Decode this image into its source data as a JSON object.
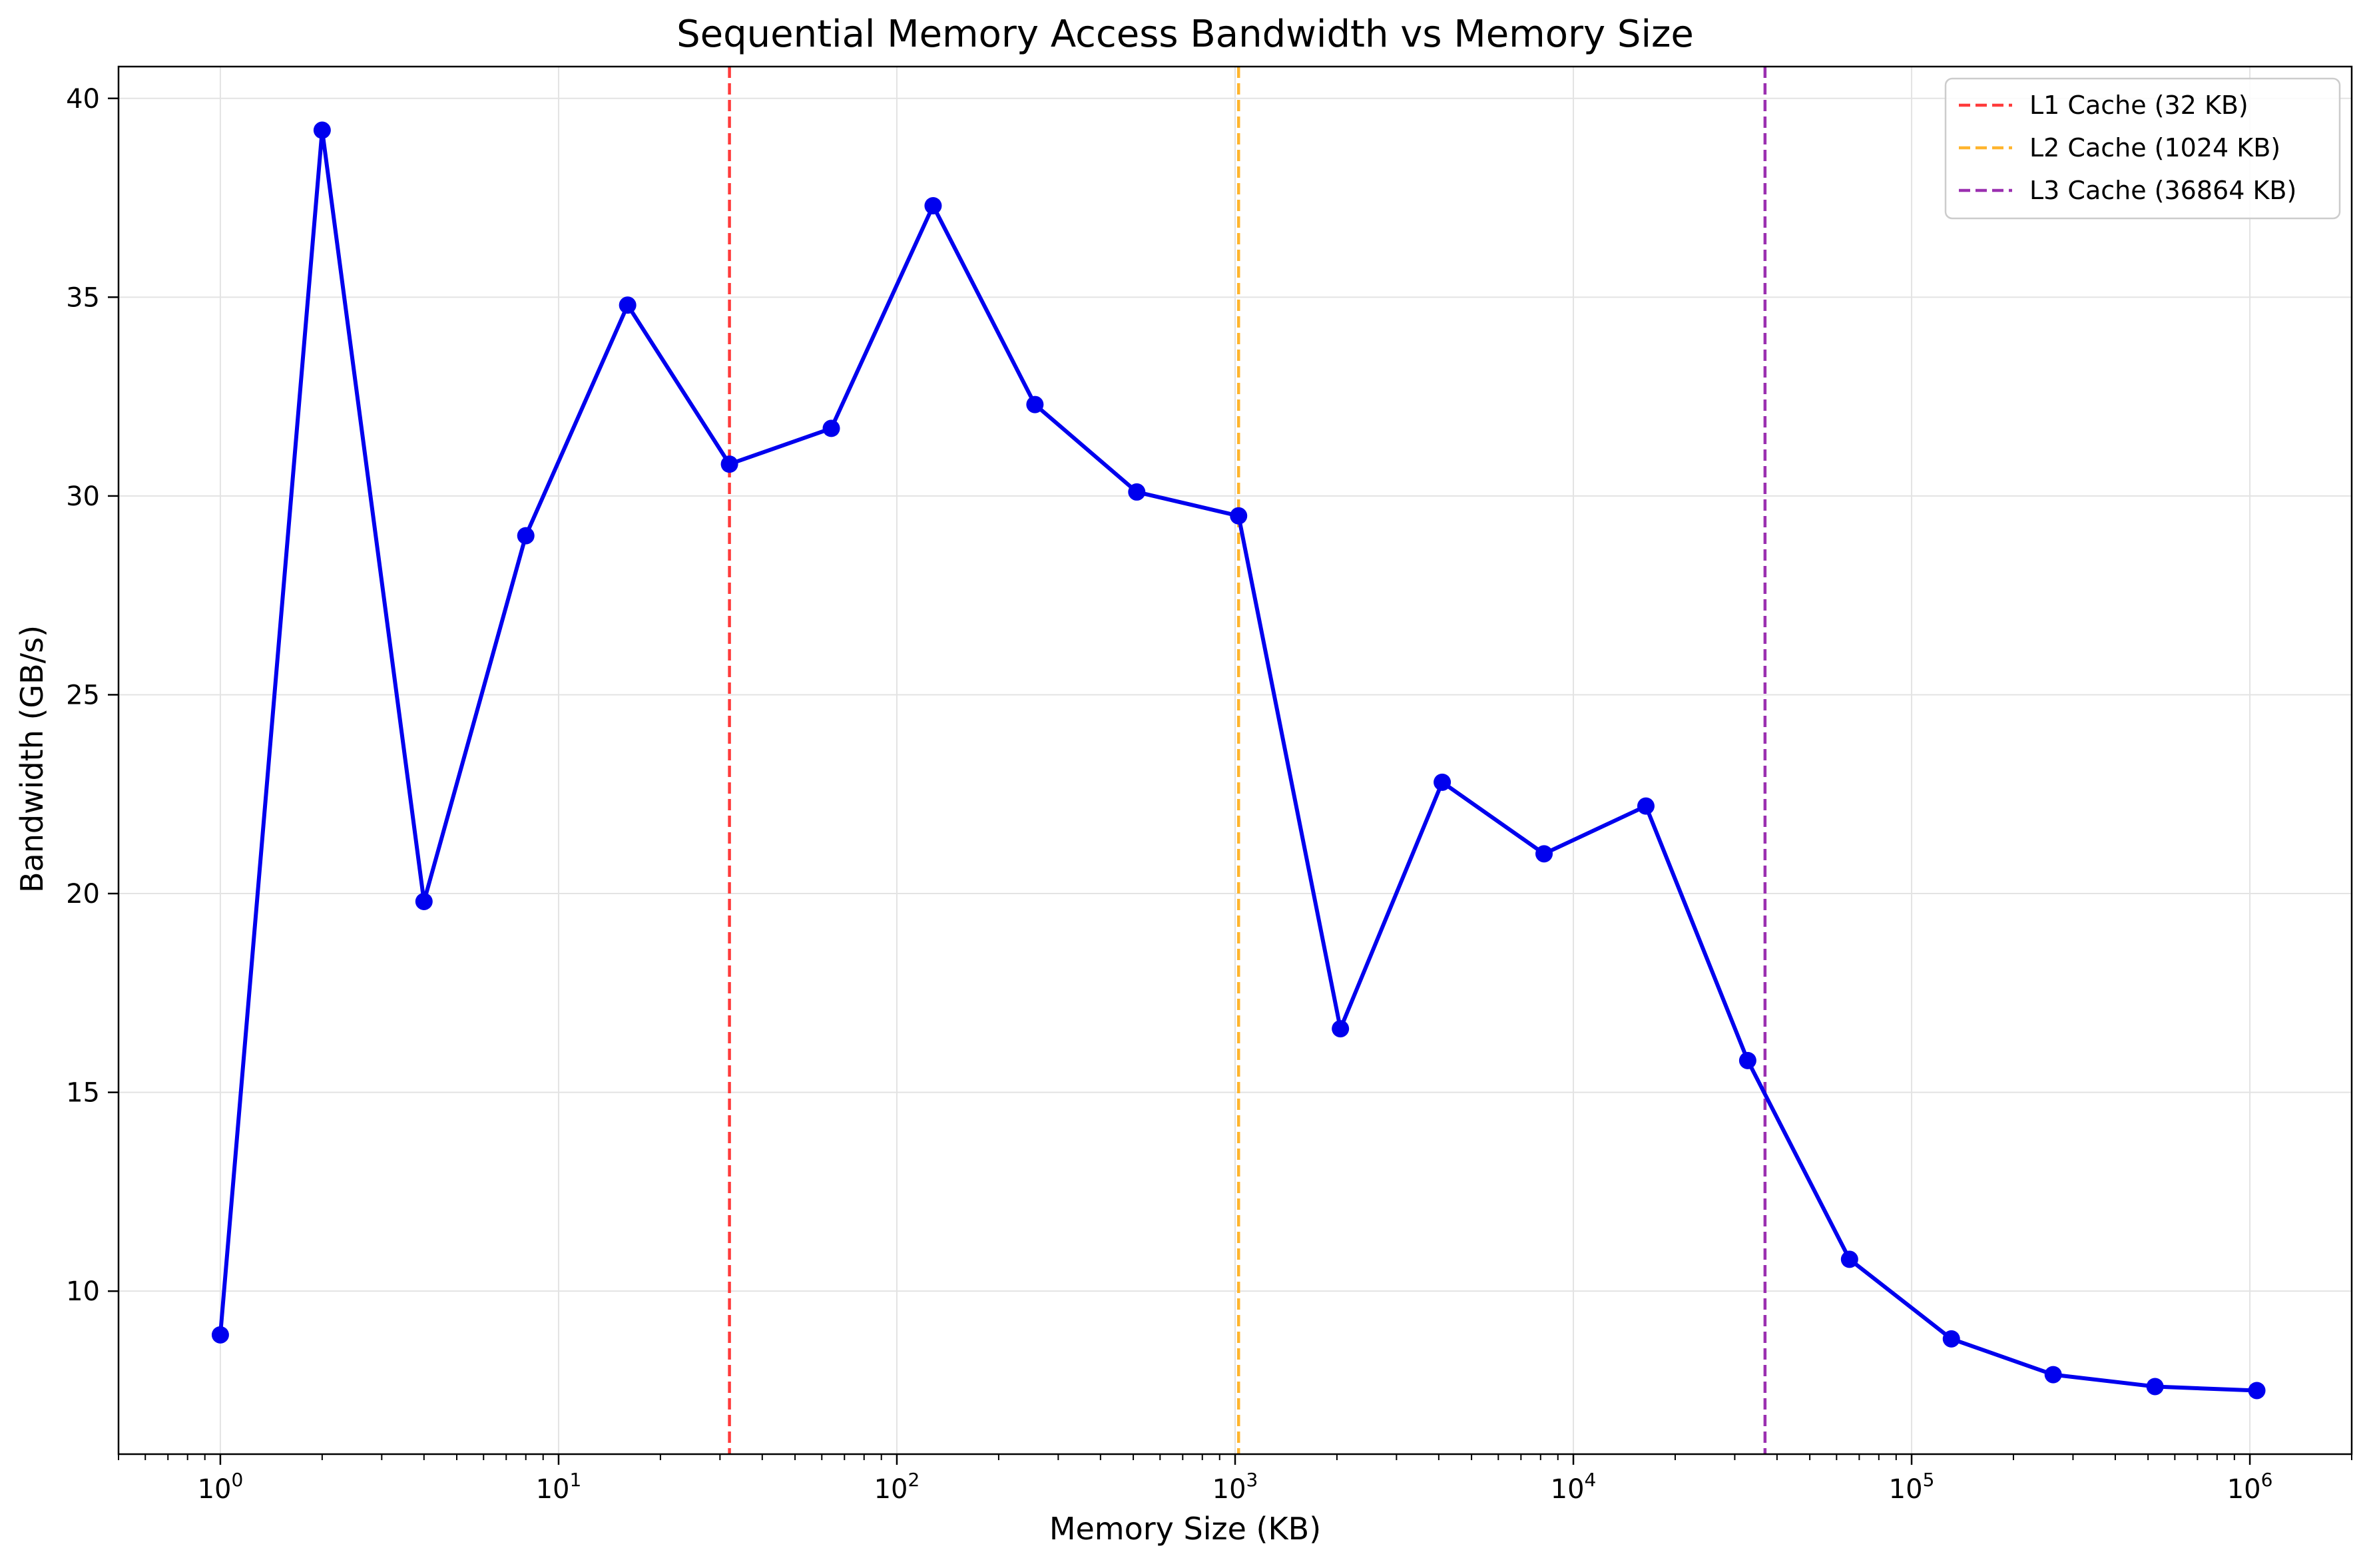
{
  "chart_data": {
    "type": "line",
    "title": "Sequential Memory Access Bandwidth vs Memory Size",
    "xlabel": "Memory Size (KB)",
    "ylabel": "Bandwidth (GB/s)",
    "x_scale": "log",
    "xlim": [
      0.5,
      2000000
    ],
    "ylim": [
      5.9,
      40.8
    ],
    "grid": true,
    "legend_position": "top-right",
    "x_ticks": [
      {
        "value": 1,
        "base": "10",
        "exp": "0"
      },
      {
        "value": 10,
        "base": "10",
        "exp": "1"
      },
      {
        "value": 100,
        "base": "10",
        "exp": "2"
      },
      {
        "value": 1000,
        "base": "10",
        "exp": "3"
      },
      {
        "value": 10000,
        "base": "10",
        "exp": "4"
      },
      {
        "value": 100000,
        "base": "10",
        "exp": "5"
      },
      {
        "value": 1000000,
        "base": "10",
        "exp": "6"
      }
    ],
    "y_ticks": [
      {
        "value": 10,
        "label": "10"
      },
      {
        "value": 15,
        "label": "15"
      },
      {
        "value": 20,
        "label": "20"
      },
      {
        "value": 25,
        "label": "25"
      },
      {
        "value": 30,
        "label": "30"
      },
      {
        "value": 35,
        "label": "35"
      },
      {
        "value": 40,
        "label": "40"
      }
    ],
    "series": [
      {
        "color": "#0000ee",
        "x": [
          1,
          2,
          4,
          8,
          16,
          32,
          64,
          128,
          256,
          512,
          1024,
          2048,
          4096,
          8192,
          16384,
          32768,
          65536,
          131072,
          262144,
          524288,
          1048576
        ],
        "y": [
          8.9,
          39.2,
          19.8,
          29.0,
          34.8,
          30.8,
          31.7,
          37.3,
          32.3,
          30.1,
          29.5,
          16.6,
          22.8,
          21.0,
          22.2,
          15.8,
          10.8,
          8.8,
          7.9,
          7.6,
          7.5
        ]
      }
    ],
    "reference_lines": [
      {
        "x": 32,
        "label": "L1 Cache (32 KB)",
        "color": "#ff3b3b"
      },
      {
        "x": 1024,
        "label": "L2 Cache (1024 KB)",
        "color": "#ffb52e"
      },
      {
        "x": 36864,
        "label": "L3 Cache (36864 KB)",
        "color": "#9b30b0"
      }
    ]
  }
}
